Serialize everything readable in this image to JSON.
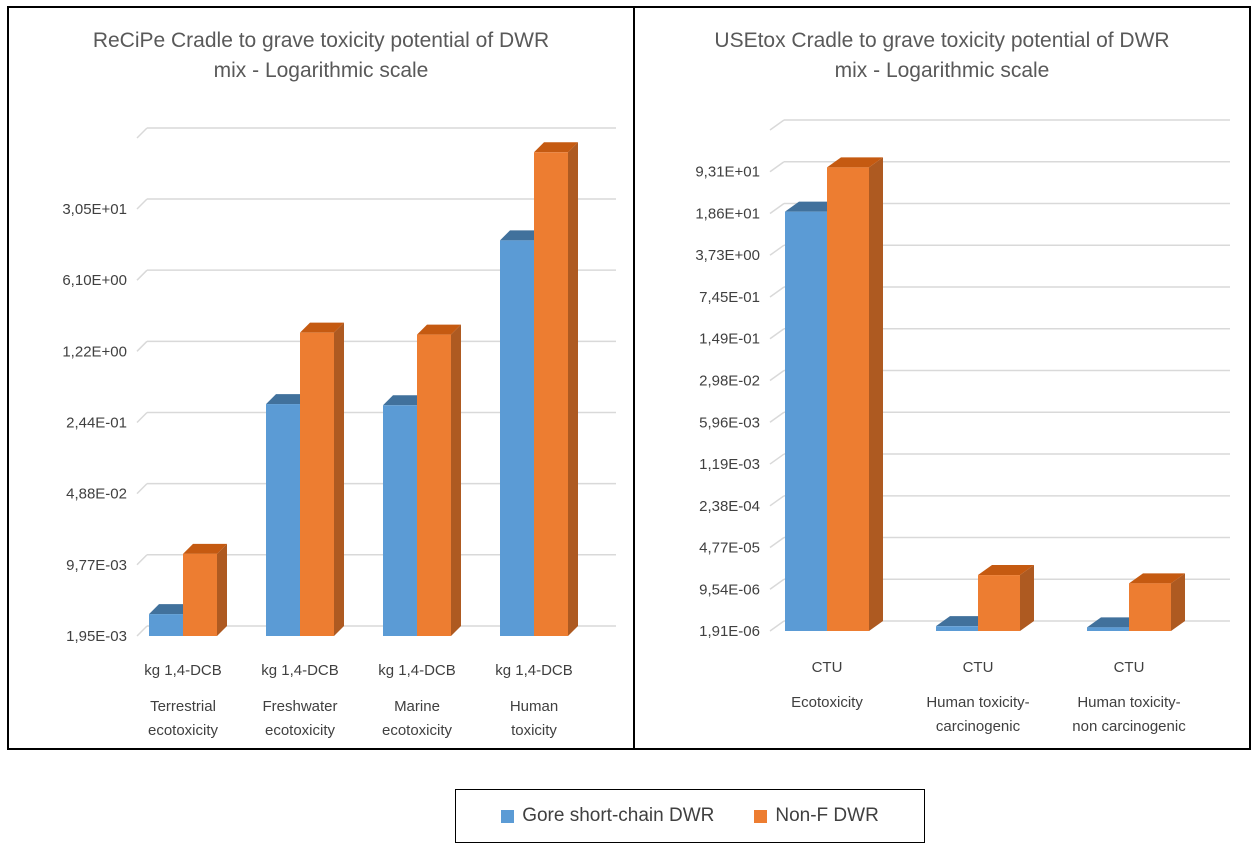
{
  "colors": {
    "series1": "#5b9bd5",
    "series1_top": "#41719c",
    "series1_side": "#2e5f8f",
    "series2": "#ed7d31",
    "series2_top": "#c55a11",
    "series2_side": "#ae5a21",
    "grid": "#d9d9d9"
  },
  "legend": {
    "items": [
      {
        "label": "Gore short-chain DWR",
        "color": "#5b9bd5"
      },
      {
        "label": "Non-F DWR",
        "color": "#ed7d31"
      }
    ]
  },
  "chart_data": [
    {
      "type": "bar",
      "title_line1": "ReCiPe Cradle to grave toxicity potential of DWR",
      "title_line2": "mix - Logarithmic scale",
      "scale": "log",
      "yticks": [
        "1,95E-03",
        "9,77E-03",
        "4,88E-02",
        "2,44E-01",
        "1,22E+00",
        "6,10E+00",
        "3,05E+01"
      ],
      "ytick_values": [
        0.00195,
        0.00977,
        0.0488,
        0.244,
        1.22,
        6.1,
        30.5
      ],
      "ylim": [
        0.00195,
        152
      ],
      "grid": true,
      "categories": [
        {
          "unit": "kg 1,4-DCB",
          "name_line1": "Terrestrial",
          "name_line2": "ecotoxicity"
        },
        {
          "unit": "kg 1,4-DCB",
          "name_line1": "Freshwater",
          "name_line2": "ecotoxicity"
        },
        {
          "unit": "kg 1,4-DCB",
          "name_line1": "Marine",
          "name_line2": "ecotoxicity"
        },
        {
          "unit": "kg 1,4-DCB",
          "name_line1": "Human",
          "name_line2": "toxicity"
        }
      ],
      "series": [
        {
          "name": "Gore short-chain DWR",
          "values": [
            0.0032,
            0.37,
            0.36,
            15.0
          ]
        },
        {
          "name": "Non-F DWR",
          "values": [
            0.0125,
            1.86,
            1.78,
            110
          ]
        }
      ]
    },
    {
      "type": "bar",
      "title_line1": "USEtox Cradle to grave toxicity potential of DWR",
      "title_line2": "mix - Logarithmic scale",
      "scale": "log",
      "yticks": [
        "1,91E-06",
        "9,54E-06",
        "4,77E-05",
        "2,38E-04",
        "1,19E-03",
        "5,96E-03",
        "2,98E-02",
        "1,49E-01",
        "7,45E-01",
        "3,73E+00",
        "1,86E+01",
        "9,31E+01"
      ],
      "ytick_values": [
        1.91e-06,
        9.54e-06,
        4.77e-05,
        0.000238,
        0.00119,
        0.00596,
        0.0298,
        0.149,
        0.745,
        3.73,
        18.6,
        93.1
      ],
      "ylim": [
        1.91e-06,
        465
      ],
      "grid": true,
      "categories": [
        {
          "unit": "CTU",
          "name_line1": "Ecotoxicity",
          "name_line2": ""
        },
        {
          "unit": "CTU",
          "name_line1": "Human toxicity-",
          "name_line2": "carcinogenic"
        },
        {
          "unit": "CTU",
          "name_line1": "Human toxicity-",
          "name_line2": "non carcinogenic"
        }
      ],
      "series": [
        {
          "name": "Gore short-chain DWR",
          "values": [
            20,
            2.3e-06,
            2.2e-06
          ]
        },
        {
          "name": "Non-F DWR",
          "values": [
            110,
            1.65e-05,
            1.2e-05
          ]
        }
      ]
    }
  ]
}
